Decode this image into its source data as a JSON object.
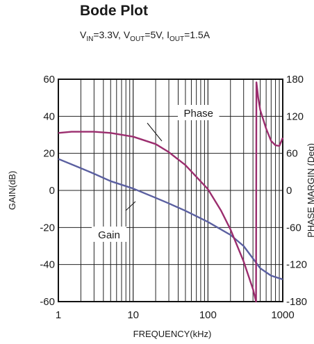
{
  "header": {
    "title": "Bode Plot",
    "subtitle": {
      "vin_label": "V",
      "vin_sub": "IN",
      "vin_value": "=3.3V, ",
      "vout_label": "V",
      "vout_sub": "OUT",
      "vout_value": "=5V, ",
      "iout_label": "I",
      "iout_sub": "OUT",
      "iout_value": "=1.5A"
    }
  },
  "chart_data": {
    "type": "line",
    "title": "Bode Plot",
    "subtitle": "VIN=3.3V, VOUT=5V, IOUT=1.5A",
    "xlabel": "FREQUENCY(kHz)",
    "ylabel_left": "GAIN(dB)",
    "ylabel_right": "PHASE MARGIN (Deg)",
    "x_scale": "log",
    "xlim": [
      1,
      1000
    ],
    "ylim_left": [
      -60,
      60
    ],
    "ylim_right": [
      -180,
      180
    ],
    "x_ticks": [
      "1",
      "10",
      "100",
      "1000"
    ],
    "y_ticks_left": [
      "60",
      "40",
      "20",
      "0",
      "-20",
      "-40",
      "-60"
    ],
    "y_ticks_right": [
      "180",
      "120",
      "60",
      "0",
      "-60",
      "-120",
      "-180"
    ],
    "grid": true,
    "series": [
      {
        "name": "Gain",
        "axis": "left",
        "color": "#5a5fa0",
        "x": [
          1,
          2,
          3,
          5,
          10,
          20,
          30,
          50,
          100,
          200,
          300,
          500,
          700,
          1000
        ],
        "y": [
          17,
          12,
          9,
          5,
          1,
          -4,
          -7,
          -11,
          -17,
          -24,
          -30,
          -42,
          -46,
          -48
        ]
      },
      {
        "name": "Phase",
        "axis": "right",
        "color": "#9b2d6e",
        "x": [
          1,
          1.5,
          3,
          5,
          10,
          20,
          30,
          50,
          100,
          150,
          200,
          300,
          400,
          440,
          445,
          455,
          470,
          500,
          600,
          700,
          800,
          900,
          1000
        ],
        "y": [
          93,
          95,
          95,
          93,
          87,
          75,
          62,
          41,
          2,
          -33,
          -63,
          -115,
          -160,
          -180,
          175,
          165,
          150,
          130,
          100,
          80,
          73,
          72,
          85
        ]
      }
    ]
  }
}
